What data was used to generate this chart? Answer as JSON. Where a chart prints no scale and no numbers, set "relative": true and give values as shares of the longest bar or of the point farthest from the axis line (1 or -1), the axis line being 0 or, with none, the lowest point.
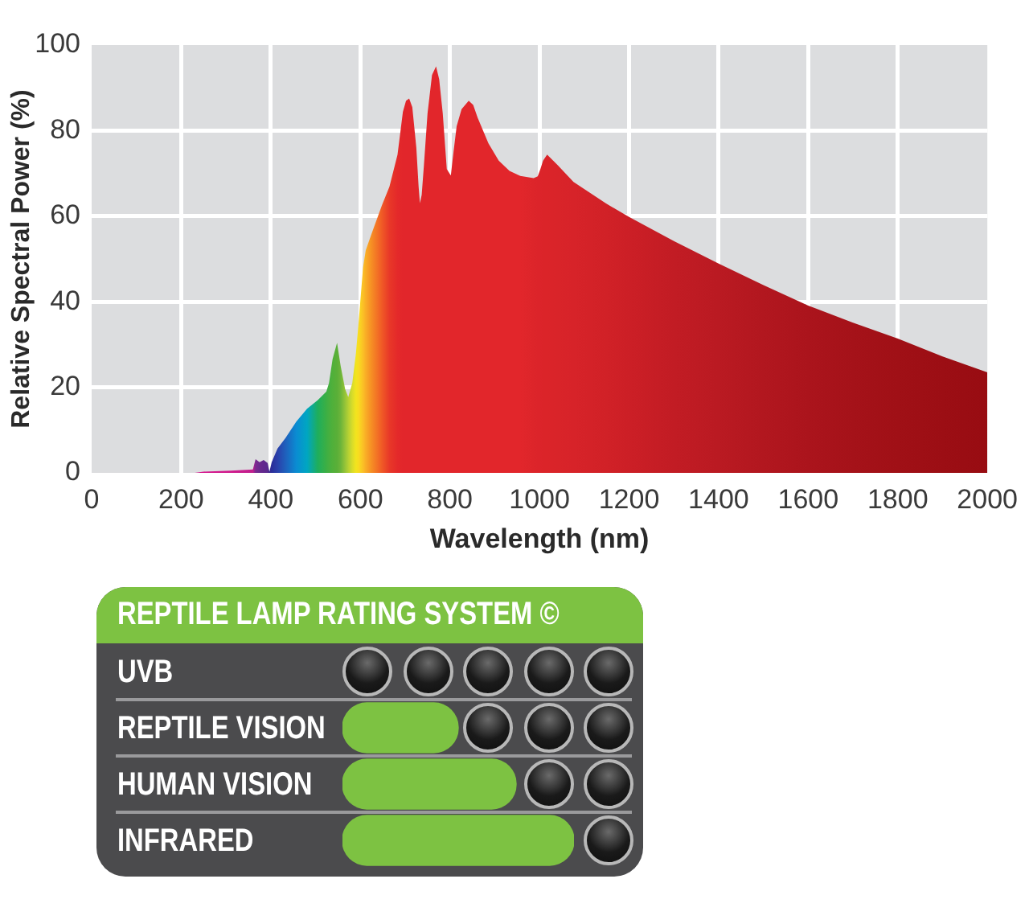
{
  "chart_data": [
    {
      "type": "area",
      "xlabel": "Wavelength (nm)",
      "ylabel": "Relative Spectral Power (%)",
      "x": [
        230,
        250,
        311,
        360,
        366,
        375,
        384,
        393,
        397,
        402,
        415,
        433,
        457,
        481,
        505,
        524,
        530,
        538,
        548,
        556,
        566,
        573,
        582,
        590,
        596,
        606,
        612,
        624,
        648,
        665,
        683,
        695,
        702,
        709,
        716,
        725,
        730,
        733,
        737,
        742,
        750,
        760,
        769,
        776,
        784,
        793,
        802,
        808,
        815,
        826,
        842,
        852,
        862,
        886,
        909,
        933,
        957,
        987,
        996,
        1002,
        1008,
        1017,
        1040,
        1076,
        1112,
        1148,
        1200,
        1300,
        1400,
        1500,
        1600,
        1700,
        1800,
        1900,
        2000
      ],
      "values": [
        0,
        0.3,
        0.5,
        0.8,
        3.2,
        2.5,
        3,
        2.3,
        0.3,
        2.5,
        5.7,
        8.2,
        12,
        15,
        17,
        19,
        21,
        26.6,
        30.4,
        25,
        19.6,
        17.7,
        21,
        27.8,
        35,
        48,
        52,
        55.6,
        62.5,
        66.9,
        74.4,
        84.4,
        87,
        87.5,
        85.5,
        76,
        67,
        63,
        65,
        72,
        84,
        93,
        95,
        92,
        84,
        71,
        69.5,
        75,
        81,
        85,
        87,
        86,
        83,
        77,
        73,
        70.6,
        69.4,
        68.9,
        69.3,
        71,
        73,
        74.4,
        72,
        68,
        65.5,
        63,
        59.8,
        54.2,
        48.9,
        43.9,
        39.1,
        35.1,
        31.4,
        27.2,
        23.5
      ],
      "colors": [
        "#d4148c",
        "#d4148c",
        "#d01a8c",
        "#c0208e",
        "#7a2a90",
        "#6a2a8e",
        "#62288e",
        "#5a2a8e",
        "#3a2a90",
        "#2a2e9a",
        "#2a40aa",
        "#1f60bc",
        "#0a8cd2",
        "#00a6c2",
        "#1fae5c",
        "#3caf44",
        "#46af40",
        "#50b03a",
        "#5aaf38",
        "#6cb43a",
        "#96c438",
        "#b4d034",
        "#d8dc2a",
        "#f2e41e",
        "#f8dc20",
        "#fbc026",
        "#f9ae26",
        "#f69024",
        "#f05a26",
        "#e83828",
        "#e4292a",
        "#e2262b",
        "#e2262b",
        "#e2262b",
        "#e2262b",
        "#e2262b",
        "#e2262b",
        "#e2262b",
        "#e2262b",
        "#e2262b",
        "#e2262b",
        "#e2262b",
        "#e2262b",
        "#e2262b",
        "#e2262b",
        "#e2262b",
        "#e2262b",
        "#e2262b",
        "#e2262b",
        "#e2262b",
        "#e2262b",
        "#e2262b",
        "#e2262b",
        "#e2262b",
        "#e2262b",
        "#e2262b",
        "#e2262b",
        "#dd252a",
        "#dc242a",
        "#dc242a",
        "#db2429",
        "#db2429",
        "#d92429",
        "#d72329",
        "#d42228",
        "#d12127",
        "#cc1f26",
        "#c21c24",
        "#ba1a22",
        "#b2171f",
        "#ab141c",
        "#a51219",
        "#a01016",
        "#9c0e14",
        "#980c12"
      ],
      "xlim": [
        0,
        2000
      ],
      "xticks": [
        0,
        200,
        400,
        600,
        800,
        1000,
        1200,
        1400,
        1600,
        1800,
        2000
      ],
      "ylim": [
        0,
        100
      ],
      "yticks": [
        0,
        20,
        40,
        60,
        80,
        100
      ],
      "grid": true,
      "legend": false
    },
    {
      "type": "bar",
      "orientation": "horizontal",
      "relative": true,
      "title": "REPTILE LAMP RATING SYSTEM ©",
      "categories": [
        "UVB",
        "REPTILE VISION",
        "HUMAN VISION",
        "INFRARED"
      ],
      "values": [
        0,
        0.5,
        0.75,
        1
      ],
      "color": "#7dc242"
    }
  ]
}
